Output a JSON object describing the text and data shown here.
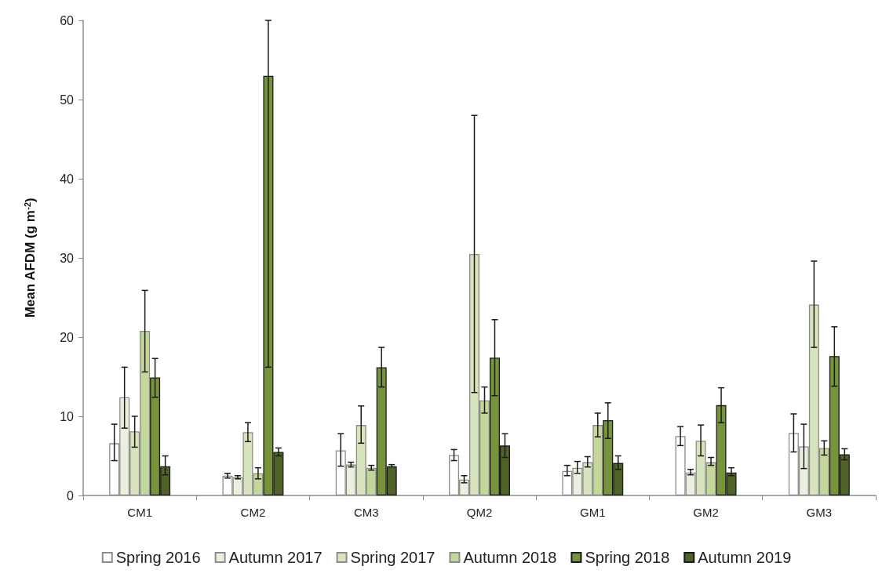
{
  "chart_data": {
    "type": "bar",
    "ylabel": "Mean AFDM (g m$^{-2}$)",
    "categories": [
      "CM1",
      "CM2",
      "CM3",
      "QM2",
      "GM1",
      "GM2",
      "GM3"
    ],
    "series": [
      {
        "name": "Spring 2016",
        "color": "#ffffff",
        "values": [
          6.6,
          2.5,
          5.7,
          5.1,
          3.1,
          7.5,
          7.9
        ],
        "errors": [
          [
            4.4,
            9.0
          ],
          [
            2.2,
            2.8
          ],
          [
            3.7,
            7.8
          ],
          [
            4.4,
            5.8
          ],
          [
            2.5,
            3.8
          ],
          [
            6.3,
            8.7
          ],
          [
            5.5,
            10.3
          ]
        ]
      },
      {
        "name": "Autumn 2017",
        "color": "#ebf0de",
        "values": [
          12.4,
          2.3,
          3.9,
          2.0,
          3.5,
          2.9,
          6.2
        ],
        "errors": [
          [
            8.5,
            16.2
          ],
          [
            2.1,
            2.5
          ],
          [
            3.6,
            4.2
          ],
          [
            1.6,
            2.5
          ],
          [
            2.8,
            4.3
          ],
          [
            2.6,
            3.3
          ],
          [
            3.4,
            9.0
          ]
        ]
      },
      {
        "name": "Spring 2017",
        "color": "#d8e4bc",
        "values": [
          8.1,
          8.0,
          8.9,
          30.5,
          4.2,
          6.9,
          24.1
        ],
        "errors": [
          [
            6.1,
            10.0
          ],
          [
            6.8,
            9.2
          ],
          [
            6.6,
            11.3
          ],
          [
            13.0,
            48.0
          ],
          [
            3.6,
            4.9
          ],
          [
            5.0,
            8.9
          ],
          [
            18.7,
            29.6
          ]
        ]
      },
      {
        "name": "Autumn 2018",
        "color": "#c4d79b",
        "values": [
          20.8,
          2.8,
          3.5,
          12.0,
          8.9,
          4.2,
          6.0
        ],
        "errors": [
          [
            15.6,
            25.9
          ],
          [
            2.1,
            3.5
          ],
          [
            3.2,
            3.8
          ],
          [
            10.4,
            13.7
          ],
          [
            7.4,
            10.4
          ],
          [
            3.8,
            4.8
          ],
          [
            5.1,
            6.9
          ]
        ]
      },
      {
        "name": "Spring 2018",
        "color": "#77933c",
        "values": [
          14.9,
          53.0,
          16.2,
          17.4,
          9.5,
          11.4,
          17.6
        ],
        "errors": [
          [
            12.4,
            17.3
          ],
          [
            16.2,
            60
          ],
          [
            13.7,
            18.7
          ],
          [
            12.6,
            22.2
          ],
          [
            7.2,
            11.7
          ],
          [
            9.2,
            13.6
          ],
          [
            13.8,
            21.3
          ]
        ]
      },
      {
        "name": "Autumn 2019",
        "color": "#4f6228",
        "values": [
          3.7,
          5.5,
          3.7,
          6.3,
          4.1,
          2.9,
          5.2
        ],
        "errors": [
          [
            2.6,
            5.0
          ],
          [
            5.0,
            6.0
          ],
          [
            3.6,
            3.9
          ],
          [
            4.8,
            7.8
          ],
          [
            3.3,
            5.0
          ],
          [
            2.5,
            3.5
          ],
          [
            4.5,
            5.9
          ]
        ]
      }
    ],
    "ylim": [
      0,
      60
    ],
    "yticks": [
      0,
      10,
      20,
      30,
      40,
      50,
      60
    ],
    "grid": false,
    "legend": "bottom"
  }
}
